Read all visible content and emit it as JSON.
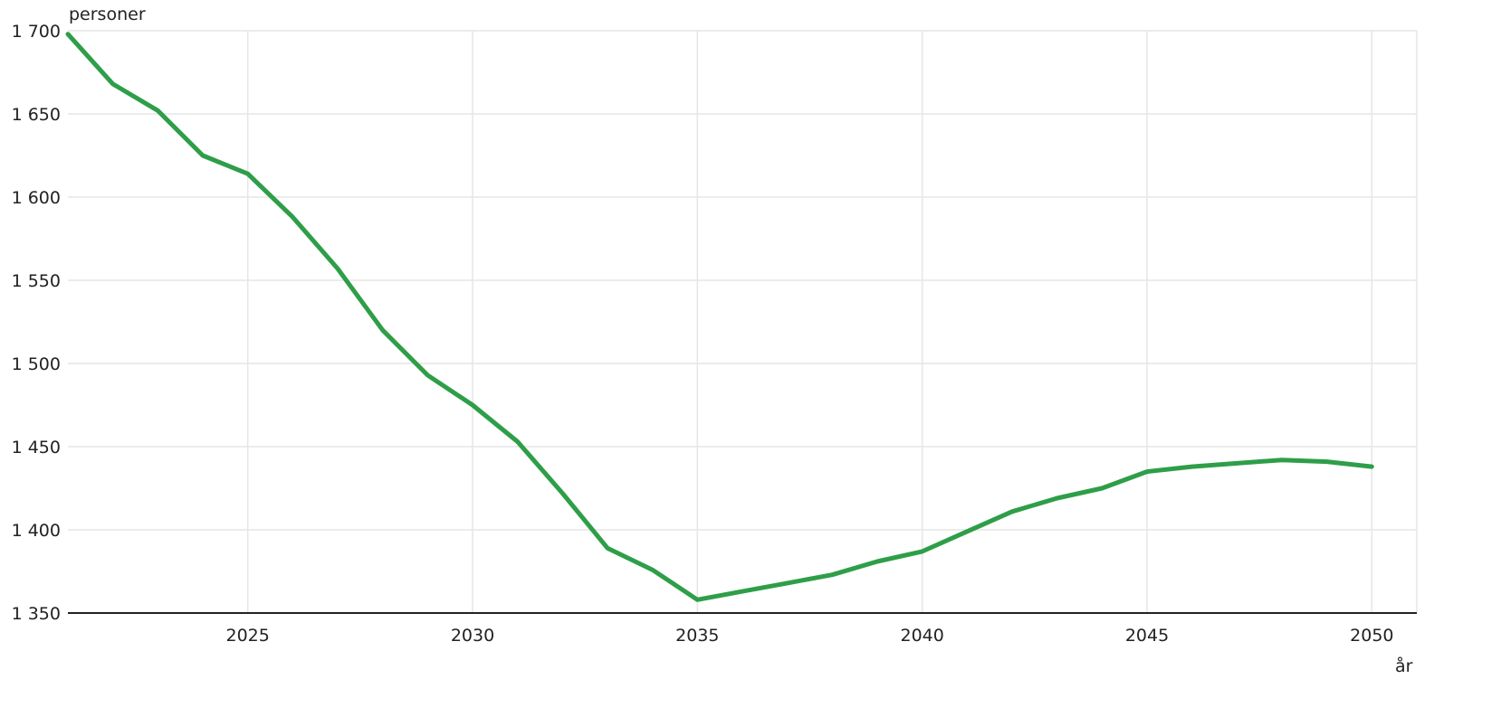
{
  "chart_data": {
    "type": "line",
    "title": "",
    "ylabel": "personer",
    "xlabel": "år",
    "ylim": [
      1350,
      1700
    ],
    "xlim": [
      2021,
      2051
    ],
    "y_ticks": [
      1350,
      1400,
      1450,
      1500,
      1550,
      1600,
      1650,
      1700
    ],
    "y_tick_labels": [
      "1 350",
      "1 400",
      "1 450",
      "1 500",
      "1 550",
      "1 600",
      "1 650",
      "1 700"
    ],
    "x_ticks": [
      2025,
      2030,
      2035,
      2040,
      2045,
      2050
    ],
    "x_tick_labels": [
      "2025",
      "2030",
      "2035",
      "2040",
      "2045",
      "2050"
    ],
    "grid": true,
    "legend": "none",
    "series": [
      {
        "color": "#2e9e48",
        "x": [
          2021,
          2022,
          2023,
          2024,
          2025,
          2026,
          2027,
          2028,
          2029,
          2030,
          2031,
          2032,
          2033,
          2034,
          2035,
          2036,
          2037,
          2038,
          2039,
          2040,
          2041,
          2042,
          2043,
          2044,
          2045,
          2046,
          2047,
          2048,
          2049,
          2050
        ],
        "values": [
          1698,
          1668,
          1652,
          1625,
          1614,
          1588,
          1557,
          1520,
          1493,
          1475,
          1453,
          1422,
          1389,
          1376,
          1358,
          1363,
          1368,
          1373,
          1381,
          1387,
          1399,
          1411,
          1419,
          1425,
          1435,
          1438,
          1440,
          1442,
          1441,
          1438
        ]
      }
    ]
  }
}
